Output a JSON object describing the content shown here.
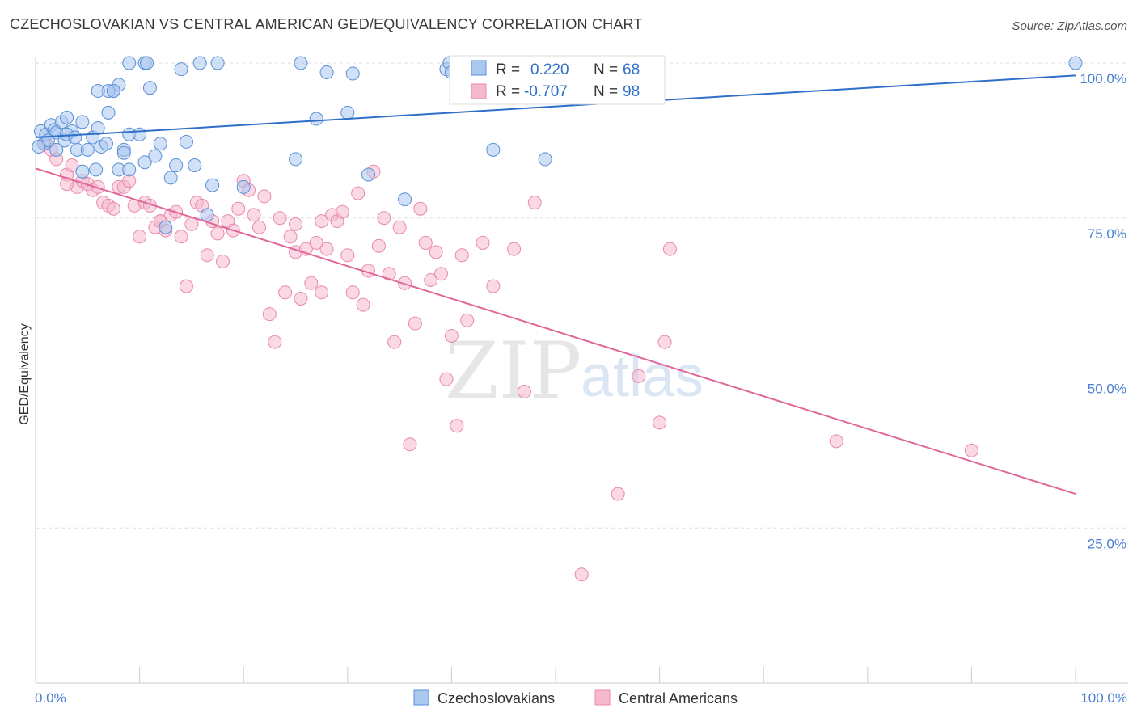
{
  "title": "CZECHOSLOVAKIAN VS CENTRAL AMERICAN GED/EQUIVALENCY CORRELATION CHART",
  "source": "Source: ZipAtlas.com",
  "watermark": {
    "zip": "ZIP",
    "atlas": "atlas"
  },
  "colors": {
    "blue_fill": "#a9c7ef",
    "blue_stroke": "#5a8fd8",
    "blue_line": "#2f6fc9",
    "pink_fill": "#f6b8cd",
    "pink_stroke": "#e88aab",
    "pink_line": "#e0679a",
    "tick_text": "#4a7fd0",
    "grid": "#dddddd"
  },
  "legend": {
    "r_label": "R =",
    "n_label": "N =",
    "series": [
      {
        "name": "Czechoslovakians",
        "r": "0.220",
        "n": "68"
      },
      {
        "name": "Central Americans",
        "r": "-0.707",
        "n": "98"
      }
    ]
  },
  "chart_data": {
    "type": "scatter",
    "title": "CZECHOSLOVAKIAN VS CENTRAL AMERICAN GED/EQUIVALENCY CORRELATION CHART",
    "xlabel": "",
    "ylabel": "GED/Equivalency",
    "xlim": [
      0,
      100
    ],
    "ylim": [
      0,
      100
    ],
    "x_tick_labels": [
      "0.0%",
      "100.0%"
    ],
    "y_ticks": [
      {
        "value": 100,
        "label": "100.0%"
      },
      {
        "value": 75,
        "label": "75.0%"
      },
      {
        "value": 50,
        "label": "50.0%"
      },
      {
        "value": 25,
        "label": "25.0%"
      }
    ],
    "series": [
      {
        "name": "Czechoslovakians",
        "trend": {
          "x": [
            0,
            100
          ],
          "y": [
            88.0,
            98.0
          ]
        },
        "points": [
          [
            0.5,
            89.0
          ],
          [
            0.8,
            87.0
          ],
          [
            1.0,
            88.5
          ],
          [
            1.5,
            90.0
          ],
          [
            1.8,
            89.2
          ],
          [
            2.0,
            88.8
          ],
          [
            2.5,
            90.5
          ],
          [
            2.8,
            87.5
          ],
          [
            3.0,
            91.2
          ],
          [
            3.5,
            89.0
          ],
          [
            4.0,
            86.0
          ],
          [
            4.5,
            90.5
          ],
          [
            5.0,
            86.0
          ],
          [
            5.5,
            88.0
          ],
          [
            6.0,
            89.5
          ],
          [
            6.3,
            86.5
          ],
          [
            7.0,
            92.0
          ],
          [
            7.5,
            95.5
          ],
          [
            8.0,
            96.5
          ],
          [
            8.5,
            86.0
          ],
          [
            9.0,
            88.5
          ],
          [
            10.0,
            88.5
          ],
          [
            11.0,
            96.0
          ],
          [
            12.0,
            87.0
          ],
          [
            3.0,
            88.5
          ],
          [
            4.5,
            82.5
          ],
          [
            5.8,
            82.8
          ],
          [
            7.0,
            95.5
          ],
          [
            8.0,
            82.8
          ],
          [
            9.0,
            82.8
          ],
          [
            10.5,
            84.0
          ],
          [
            11.5,
            85.0
          ],
          [
            13.5,
            83.5
          ],
          [
            14.5,
            87.3
          ],
          [
            15.3,
            83.5
          ],
          [
            17.0,
            80.3
          ],
          [
            16.5,
            75.5
          ],
          [
            6.0,
            95.5
          ],
          [
            7.5,
            95.5
          ],
          [
            12.5,
            73.5
          ],
          [
            9.0,
            100.0
          ],
          [
            10.5,
            100.0
          ],
          [
            10.7,
            100.0
          ],
          [
            14.0,
            99.0
          ],
          [
            15.8,
            100.0
          ],
          [
            17.5,
            100.0
          ],
          [
            25.5,
            100.0
          ],
          [
            28.0,
            98.5
          ],
          [
            30.5,
            98.3
          ],
          [
            25.0,
            84.5
          ],
          [
            27.0,
            91.0
          ],
          [
            30.0,
            92.0
          ],
          [
            32.0,
            82.0
          ],
          [
            35.5,
            78.0
          ],
          [
            39.5,
            99.0
          ],
          [
            39.8,
            100.0
          ],
          [
            40.0,
            98.5
          ],
          [
            44.0,
            86.0
          ],
          [
            20.0,
            80.0
          ],
          [
            13.0,
            81.5
          ],
          [
            2.0,
            86.0
          ],
          [
            1.2,
            87.5
          ],
          [
            3.8,
            88.0
          ],
          [
            6.8,
            87.0
          ],
          [
            8.5,
            85.5
          ],
          [
            49.0,
            84.5
          ],
          [
            100.0,
            100.0
          ],
          [
            0.3,
            86.5
          ]
        ]
      },
      {
        "name": "Central Americans",
        "trend": {
          "x": [
            0,
            100
          ],
          "y": [
            83.0,
            30.5
          ]
        },
        "points": [
          [
            1.0,
            87.0
          ],
          [
            1.5,
            86.0
          ],
          [
            2.0,
            84.5
          ],
          [
            3.0,
            82.0
          ],
          [
            3.5,
            83.5
          ],
          [
            4.0,
            80.0
          ],
          [
            4.5,
            81.0
          ],
          [
            5.0,
            80.5
          ],
          [
            5.5,
            79.5
          ],
          [
            6.0,
            80.0
          ],
          [
            6.5,
            77.5
          ],
          [
            7.0,
            77.0
          ],
          [
            7.5,
            76.5
          ],
          [
            8.0,
            80.0
          ],
          [
            8.5,
            80.0
          ],
          [
            9.0,
            81.0
          ],
          [
            9.5,
            77.0
          ],
          [
            10.0,
            72.0
          ],
          [
            10.5,
            77.5
          ],
          [
            11.0,
            77.0
          ],
          [
            11.5,
            73.5
          ],
          [
            12.0,
            74.5
          ],
          [
            12.5,
            73.0
          ],
          [
            13.0,
            75.5
          ],
          [
            13.5,
            76.0
          ],
          [
            14.0,
            72.0
          ],
          [
            14.5,
            64.0
          ],
          [
            15.0,
            74.0
          ],
          [
            15.5,
            77.5
          ],
          [
            16.0,
            77.0
          ],
          [
            16.5,
            69.0
          ],
          [
            17.0,
            74.5
          ],
          [
            17.5,
            72.5
          ],
          [
            18.0,
            68.0
          ],
          [
            18.5,
            74.5
          ],
          [
            19.0,
            73.0
          ],
          [
            19.5,
            76.5
          ],
          [
            20.0,
            81.0
          ],
          [
            20.5,
            79.5
          ],
          [
            21.0,
            75.5
          ],
          [
            21.5,
            73.5
          ],
          [
            22.0,
            78.5
          ],
          [
            22.5,
            59.5
          ],
          [
            23.0,
            55.0
          ],
          [
            23.5,
            75.0
          ],
          [
            24.0,
            63.0
          ],
          [
            24.5,
            72.0
          ],
          [
            25.0,
            69.5
          ],
          [
            25.5,
            62.0
          ],
          [
            26.0,
            70.0
          ],
          [
            26.5,
            64.5
          ],
          [
            27.0,
            71.0
          ],
          [
            27.5,
            63.0
          ],
          [
            28.0,
            70.0
          ],
          [
            28.5,
            75.5
          ],
          [
            29.0,
            74.5
          ],
          [
            29.5,
            76.0
          ],
          [
            30.0,
            69.0
          ],
          [
            30.5,
            63.0
          ],
          [
            31.0,
            79.0
          ],
          [
            31.5,
            61.0
          ],
          [
            32.0,
            66.5
          ],
          [
            32.5,
            82.5
          ],
          [
            33.0,
            70.5
          ],
          [
            33.5,
            75.0
          ],
          [
            34.0,
            66.0
          ],
          [
            34.5,
            55.0
          ],
          [
            35.0,
            73.5
          ],
          [
            35.5,
            64.5
          ],
          [
            36.0,
            38.5
          ],
          [
            36.5,
            58.0
          ],
          [
            37.0,
            76.5
          ],
          [
            37.5,
            71.0
          ],
          [
            38.0,
            65.0
          ],
          [
            38.5,
            69.5
          ],
          [
            39.0,
            66.0
          ],
          [
            39.5,
            49.0
          ],
          [
            40.0,
            56.0
          ],
          [
            40.5,
            41.5
          ],
          [
            41.0,
            69.0
          ],
          [
            41.5,
            58.5
          ],
          [
            43.0,
            71.0
          ],
          [
            44.0,
            64.0
          ],
          [
            46.0,
            70.0
          ],
          [
            47.0,
            47.0
          ],
          [
            48.0,
            77.5
          ],
          [
            52.5,
            17.5
          ],
          [
            56.0,
            30.5
          ],
          [
            58.0,
            49.5
          ],
          [
            60.0,
            42.0
          ],
          [
            60.5,
            55.0
          ],
          [
            61.0,
            70.0
          ],
          [
            77.0,
            39.0
          ],
          [
            90.0,
            37.5
          ],
          [
            12.0,
            74.5
          ],
          [
            27.5,
            74.5
          ],
          [
            25.0,
            74.0
          ],
          [
            3.0,
            80.5
          ]
        ]
      }
    ]
  }
}
